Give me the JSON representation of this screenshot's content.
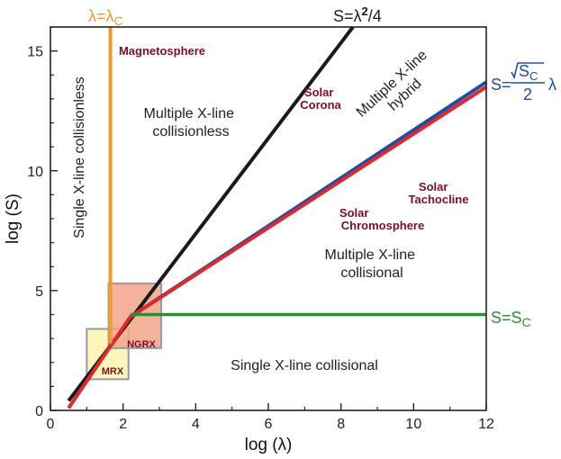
{
  "chart_data": {
    "type": "line",
    "xlabel": "log (λ)",
    "ylabel": "log (S)",
    "xlim": [
      0,
      12
    ],
    "ylim": [
      0,
      16
    ],
    "xticks": [
      "0",
      "2",
      "4",
      "6",
      "8",
      "10",
      "12"
    ],
    "yticks": [
      "0",
      "5",
      "10",
      "15"
    ],
    "series": [
      {
        "name": "S=λ²/4",
        "color": "#1a1a1a",
        "x": [
          0.5,
          8.33
        ],
        "y": [
          0.4,
          16
        ]
      },
      {
        "name": "blue",
        "color": "#1f4e9c",
        "x": [
          2.2,
          12
        ],
        "y": [
          3.9,
          13.7
        ]
      },
      {
        "name": "red",
        "color": "#e0262f",
        "x": [
          0.5,
          2.2,
          12
        ],
        "y": [
          0.1,
          3.9,
          13.5
        ]
      },
      {
        "name": "S=Sc",
        "color": "#2e8b37",
        "x": [
          2.2,
          12
        ],
        "y": [
          4,
          4
        ]
      },
      {
        "name": "λ=λc",
        "color": "#f29a2e",
        "x": [
          1.65,
          1.65
        ],
        "y": [
          2.8,
          16
        ]
      }
    ],
    "boxes": [
      {
        "name": "MRX",
        "fill": "#fbf3b0",
        "x": [
          1.0,
          2.15
        ],
        "y": [
          1.3,
          3.4
        ]
      },
      {
        "name": "NGRX",
        "fill": "#f3a48a",
        "x": [
          1.6,
          3.05
        ],
        "y": [
          2.6,
          5.3
        ]
      }
    ],
    "line_labels": {
      "lambda_c": {
        "main": "λ=λ",
        "sub": "C",
        "color": "#f29a2e"
      },
      "lambda_sq": {
        "main": "S=λ",
        "sup": "2",
        "tail": "/4",
        "color": "#1a1a1a"
      },
      "sqrt_sc": {
        "lhs": "S=",
        "num": "S",
        "num_sub": "C",
        "den": "2",
        "rhs": "λ",
        "color": "#1f4e9c"
      },
      "s_c": {
        "main": "S=S",
        "sub": "C",
        "color": "#2e8b37"
      }
    },
    "annotations": {
      "single_collisionless": "Single X-line collisionless",
      "multi_collisionless": [
        "Multiple X-line",
        "collisionless"
      ],
      "multi_hybrid": [
        "Multiple X-line",
        "hybrid"
      ],
      "multi_collisional": [
        "Multiple X-line",
        "collisional"
      ],
      "single_collisional": "Single X-line collisional",
      "magnetosphere": "Magnetosphere",
      "solar_corona": [
        "Solar",
        "Corona"
      ],
      "solar_chromosphere": [
        "Solar",
        "Chromosphere"
      ],
      "solar_tachocline": [
        "Solar",
        "Tachocline"
      ],
      "mrx": "MRX",
      "ngrx": "NGRX"
    }
  }
}
